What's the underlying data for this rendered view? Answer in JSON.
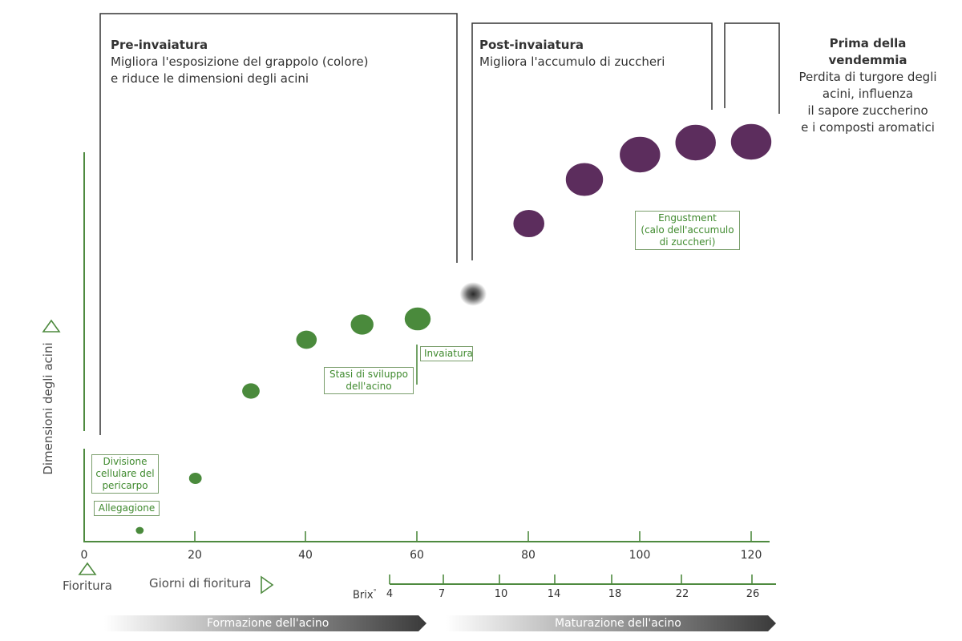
{
  "phases": {
    "pre": {
      "title": "Pre-invaiatura",
      "line1": "Migliora l'esposizione del grappolo (colore)",
      "line2": "e riduce le dimensioni degli acini"
    },
    "post": {
      "title": "Post-invaiatura",
      "line1": "Migliora l'accumulo di zuccheri"
    },
    "harvest": {
      "title1": "Prima della",
      "title2": "vendemmia",
      "line1": "Perdita di turgore degli",
      "line2": "acini, influenza",
      "line3": "il sapore zuccherino",
      "line4": "e i composti aromatici"
    }
  },
  "axes": {
    "y_label": "Dimensioni degli acini",
    "x_ticks": [
      "0",
      "20",
      "40",
      "60",
      "80",
      "100",
      "120"
    ],
    "x_origin_label": "Fioritura",
    "x_label": "Giorni di fioritura",
    "brix_label": "Brix",
    "brix_unit": "°",
    "brix_ticks": [
      "4",
      "7",
      "10",
      "14",
      "18",
      "22",
      "26"
    ]
  },
  "annotations": {
    "divisione": {
      "line1": "Divisione",
      "line2": "cellulare del",
      "line3": "pericarpo"
    },
    "allegagione": "Allegagione",
    "stasi": {
      "line1": "Stasi di sviluppo",
      "line2": "dell'acino"
    },
    "invaiatura": "Invaiatura",
    "engustment": {
      "line1": "Engustment",
      "line2": "(calo dell'accumulo",
      "line3": "di zuccheri)"
    }
  },
  "bands": {
    "formazione": "Formazione dell'acino",
    "maturazione": "Maturazione dell'acino"
  },
  "berries": [
    {
      "day": 10,
      "size": 0.25,
      "color": "green"
    },
    {
      "day": 20,
      "size": 0.4,
      "color": "green"
    },
    {
      "day": 30,
      "size": 0.55,
      "color": "green"
    },
    {
      "day": 40,
      "size": 0.65,
      "color": "green"
    },
    {
      "day": 50,
      "size": 0.72,
      "color": "green"
    },
    {
      "day": 60,
      "size": 0.82,
      "color": "green"
    },
    {
      "day": 70,
      "size": 0.85,
      "color": "veraison"
    },
    {
      "day": 80,
      "size": 1.0,
      "color": "purple"
    },
    {
      "day": 90,
      "size": 1.2,
      "color": "purple"
    },
    {
      "day": 100,
      "size": 1.3,
      "color": "purple"
    },
    {
      "day": 110,
      "size": 1.3,
      "color": "purple"
    },
    {
      "day": 120,
      "size": 1.3,
      "color": "purple"
    }
  ],
  "colors": {
    "green": "#4a8a3c",
    "axis_green": "#4e8a3f",
    "purple": "#5c2d5d",
    "bracket": "#333333"
  }
}
